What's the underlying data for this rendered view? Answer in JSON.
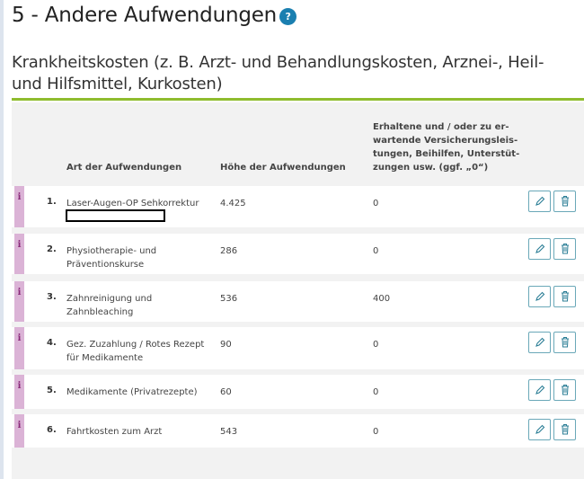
{
  "title": "5 - Andere Aufwendungen",
  "help_icon": "?",
  "section_title": "Krankheitskosten (z. B. Arzt- und Behandlungskosten, Arznei-, Heil- und Hilfsmittel, Kurkosten)",
  "colors": {
    "accent_line": "#8fbc2e",
    "info_bar": "#dbb3d6",
    "help": "#1a7fb0",
    "button_border": "#6aa8b8"
  },
  "table": {
    "headers": {
      "art": "Art der Aufwendungen",
      "hoehe": "Höhe der Aufwendungen"
    },
    "header_lines": [
      "Erhaltene und / oder zu er-",
      "wartende Versicherungsleis-",
      "tungen, Beihilfen, Unterstüt-",
      "zungen usw. (ggf. „0“)"
    ],
    "info_glyph": "i",
    "rows": [
      {
        "num": "1.",
        "art": "Laser-Augen-OP Sehkorrektur",
        "hoehe": "4.425",
        "erhaltene": "0"
      },
      {
        "num": "2.",
        "art": "Physiotherapie- und Präventionskurse",
        "hoehe": "286",
        "erhaltene": "0"
      },
      {
        "num": "3.",
        "art": "Zahnreinigung und Zahnbleaching",
        "hoehe": "536",
        "erhaltene": "400"
      },
      {
        "num": "4.",
        "art": "Gez. Zuzahlung / Rotes Rezept für Medikamente",
        "hoehe": "90",
        "erhaltene": "0"
      },
      {
        "num": "5.",
        "art": "Medikamente (Privatrezepte)",
        "hoehe": "60",
        "erhaltene": "0"
      },
      {
        "num": "6.",
        "art": "Fahrtkosten zum Arzt",
        "hoehe": "543",
        "erhaltene": "0"
      }
    ]
  }
}
